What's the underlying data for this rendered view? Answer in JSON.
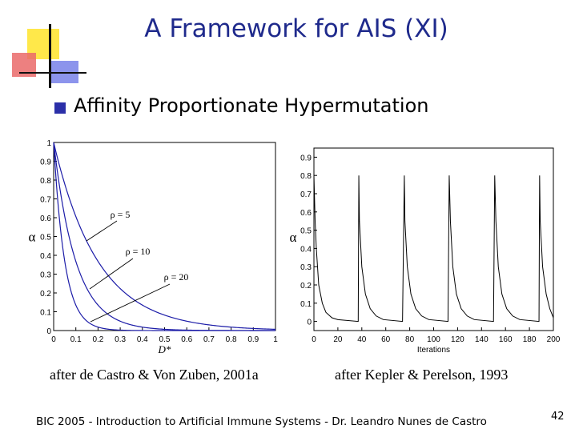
{
  "slide": {
    "title": "A Framework for AIS (XI)",
    "bullet": "Affinity Proportionate Hypermutation",
    "footer": "BIC 2005 - Introduction to Artificial Immune Systems - Dr. Leandro Nunes de Castro",
    "page_number": "42"
  },
  "colors": {
    "title": "#1f2a8c",
    "bullet": "#2b2fa8",
    "curve": "#1c1ca8",
    "deco_yellow": "#ffe84a",
    "deco_red": "#ea6a6a",
    "deco_blue": "#6570e6"
  },
  "chart_data": [
    {
      "type": "line",
      "caption": "after de Castro & Von Zuben, 2001a",
      "xlabel": "D*",
      "ylabel": "α",
      "xlim": [
        0,
        1
      ],
      "ylim": [
        0,
        1
      ],
      "xticks": [
        "0",
        "0.1",
        "0.2",
        "0.3",
        "0.4",
        "0.5",
        "0.6",
        "0.7",
        "0.8",
        "0.9",
        "1"
      ],
      "yticks": [
        "0",
        "0.1",
        "0.2",
        "0.3",
        "0.4",
        "0.5",
        "0.6",
        "0.7",
        "0.8",
        "0.9",
        "1"
      ],
      "series": [
        {
          "name": "ρ = 5",
          "values": [
            1,
            0.61,
            0.37,
            0.22,
            0.14,
            0.08,
            0.05,
            0.03,
            0.02,
            0.01,
            0.01
          ]
        },
        {
          "name": "ρ = 10",
          "values": [
            1,
            0.37,
            0.14,
            0.05,
            0.02,
            0.01,
            0.0,
            0.0,
            0.0,
            0.0,
            0.0
          ]
        },
        {
          "name": "ρ = 20",
          "values": [
            1,
            0.14,
            0.02,
            0.0,
            0.0,
            0.0,
            0.0,
            0.0,
            0.0,
            0.0,
            0.0
          ]
        }
      ]
    },
    {
      "type": "line",
      "caption": "after Kepler & Perelson, 1993",
      "xlabel": "Iterations",
      "ylabel": "α",
      "xlim": [
        0,
        200
      ],
      "ylim": [
        -0.05,
        0.95
      ],
      "xticks": [
        "0",
        "20",
        "40",
        "60",
        "80",
        "100",
        "120",
        "140",
        "160",
        "180",
        "200"
      ],
      "yticks": [
        "0",
        "0.1",
        "0.2",
        "0.3",
        "0.4",
        "0.5",
        "0.6",
        "0.7",
        "0.8",
        "0.9"
      ],
      "series": [
        {
          "values": [
            {
              "x": 0,
              "y": 0.8
            },
            {
              "x": 1,
              "y": 0.55
            },
            {
              "x": 2,
              "y": 0.4
            },
            {
              "x": 4,
              "y": 0.2
            },
            {
              "x": 7,
              "y": 0.1
            },
            {
              "x": 10,
              "y": 0.05
            },
            {
              "x": 15,
              "y": 0.02
            },
            {
              "x": 20,
              "y": 0.01
            },
            {
              "x": 37,
              "y": 0.0
            },
            {
              "x": 37.5,
              "y": 0.8
            },
            {
              "x": 38,
              "y": 0.55
            },
            {
              "x": 40,
              "y": 0.3
            },
            {
              "x": 43,
              "y": 0.15
            },
            {
              "x": 47,
              "y": 0.07
            },
            {
              "x": 52,
              "y": 0.03
            },
            {
              "x": 58,
              "y": 0.01
            },
            {
              "x": 74,
              "y": 0.0
            },
            {
              "x": 75.5,
              "y": 0.8
            },
            {
              "x": 76,
              "y": 0.55
            },
            {
              "x": 78,
              "y": 0.3
            },
            {
              "x": 81,
              "y": 0.15
            },
            {
              "x": 85,
              "y": 0.07
            },
            {
              "x": 90,
              "y": 0.03
            },
            {
              "x": 96,
              "y": 0.01
            },
            {
              "x": 112,
              "y": 0.0
            },
            {
              "x": 113,
              "y": 0.8
            },
            {
              "x": 114,
              "y": 0.55
            },
            {
              "x": 116,
              "y": 0.3
            },
            {
              "x": 119,
              "y": 0.15
            },
            {
              "x": 123,
              "y": 0.07
            },
            {
              "x": 128,
              "y": 0.03
            },
            {
              "x": 134,
              "y": 0.01
            },
            {
              "x": 150,
              "y": 0.0
            },
            {
              "x": 151,
              "y": 0.8
            },
            {
              "x": 152,
              "y": 0.55
            },
            {
              "x": 154,
              "y": 0.3
            },
            {
              "x": 157,
              "y": 0.15
            },
            {
              "x": 161,
              "y": 0.07
            },
            {
              "x": 166,
              "y": 0.03
            },
            {
              "x": 172,
              "y": 0.01
            },
            {
              "x": 188,
              "y": 0.0
            },
            {
              "x": 188.5,
              "y": 0.8
            },
            {
              "x": 189,
              "y": 0.55
            },
            {
              "x": 191,
              "y": 0.3
            },
            {
              "x": 194,
              "y": 0.15
            },
            {
              "x": 197,
              "y": 0.07
            },
            {
              "x": 200,
              "y": 0.02
            }
          ]
        }
      ]
    }
  ]
}
